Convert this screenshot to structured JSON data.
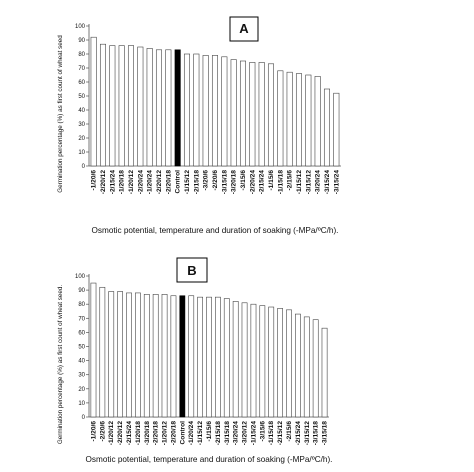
{
  "chart_data": [
    {
      "type": "bar",
      "panel_label": "A",
      "ylabel": "Germination percentage (%) as first count of wheat seed",
      "xlabel": "Osmotic potential, temperature and duration of soaking (-MPa/ºC/h).",
      "ylim": [
        0,
        100
      ],
      "yticks": [
        0,
        10,
        20,
        30,
        40,
        50,
        60,
        70,
        80,
        90,
        100
      ],
      "grid": false,
      "categories": [
        "-1/20/6",
        "-2/20/12",
        "-2/15/24",
        "-1/20/18",
        "-1/20/12",
        "-2/20/24",
        "-1/20/24",
        "-2/20/12",
        "-2/20/18",
        "Control",
        "-1/15/12",
        "-2/15/18",
        "-3/20/6",
        "-2/20/6",
        "-3/15/18",
        "-3/20/18",
        "-3/15/6",
        "-2/20/24",
        "-2/15/24",
        "-1/15/6",
        "-1/15/18",
        "-2/15/6",
        "-1/15/12",
        "-3/15/12",
        "-3/20/24",
        "-3/15/24",
        "-3/15/24"
      ],
      "values": [
        92,
        87,
        86,
        86,
        86,
        85,
        84,
        83,
        83,
        83,
        80,
        80,
        79,
        79,
        78,
        76,
        75,
        74,
        74,
        73,
        68,
        67,
        66,
        65,
        64,
        55,
        52
      ],
      "highlight_category": "Control",
      "colors": {
        "bar": "#ffffff",
        "bar_outline": "#444444",
        "highlight": "#000000"
      }
    },
    {
      "type": "bar",
      "panel_label": "B",
      "ylabel": "Germination percentage (%) as first count of wheat seed.",
      "xlabel": "Osmotic potential, temperature and duration of soaking (-MPa/ºC/h).",
      "ylim": [
        0,
        100
      ],
      "yticks": [
        0,
        10,
        20,
        30,
        40,
        50,
        60,
        70,
        80,
        90,
        100
      ],
      "grid": false,
      "categories": [
        "-1/20/6",
        "-2/20/6",
        "-1/20/12",
        "-2/20/12",
        "-2/15/24",
        "-1/20/18",
        "-3/20/18",
        "-2/20/18",
        "-1/20/12",
        "-2/20/18",
        "Control",
        "-1/20/24",
        "-1/15/12",
        "-1/15/6",
        "-2/15/18",
        "-3/15/18",
        "-3/20/24",
        "-3/20/12",
        "-1/15/24",
        "-3/15/6",
        "-1/15/18",
        "-2/15/12",
        "-2/15/6",
        "-2/15/24",
        "-3/15/12",
        "-3/15/18",
        "-3/15/18"
      ],
      "values": [
        95,
        92,
        89,
        89,
        88,
        88,
        87,
        87,
        87,
        86,
        86,
        86,
        85,
        85,
        85,
        84,
        82,
        81,
        80,
        79,
        78,
        77,
        76,
        73,
        71,
        69,
        63
      ],
      "highlight_category": "Control",
      "colors": {
        "bar": "#ffffff",
        "bar_outline": "#444444",
        "highlight": "#000000"
      }
    }
  ]
}
